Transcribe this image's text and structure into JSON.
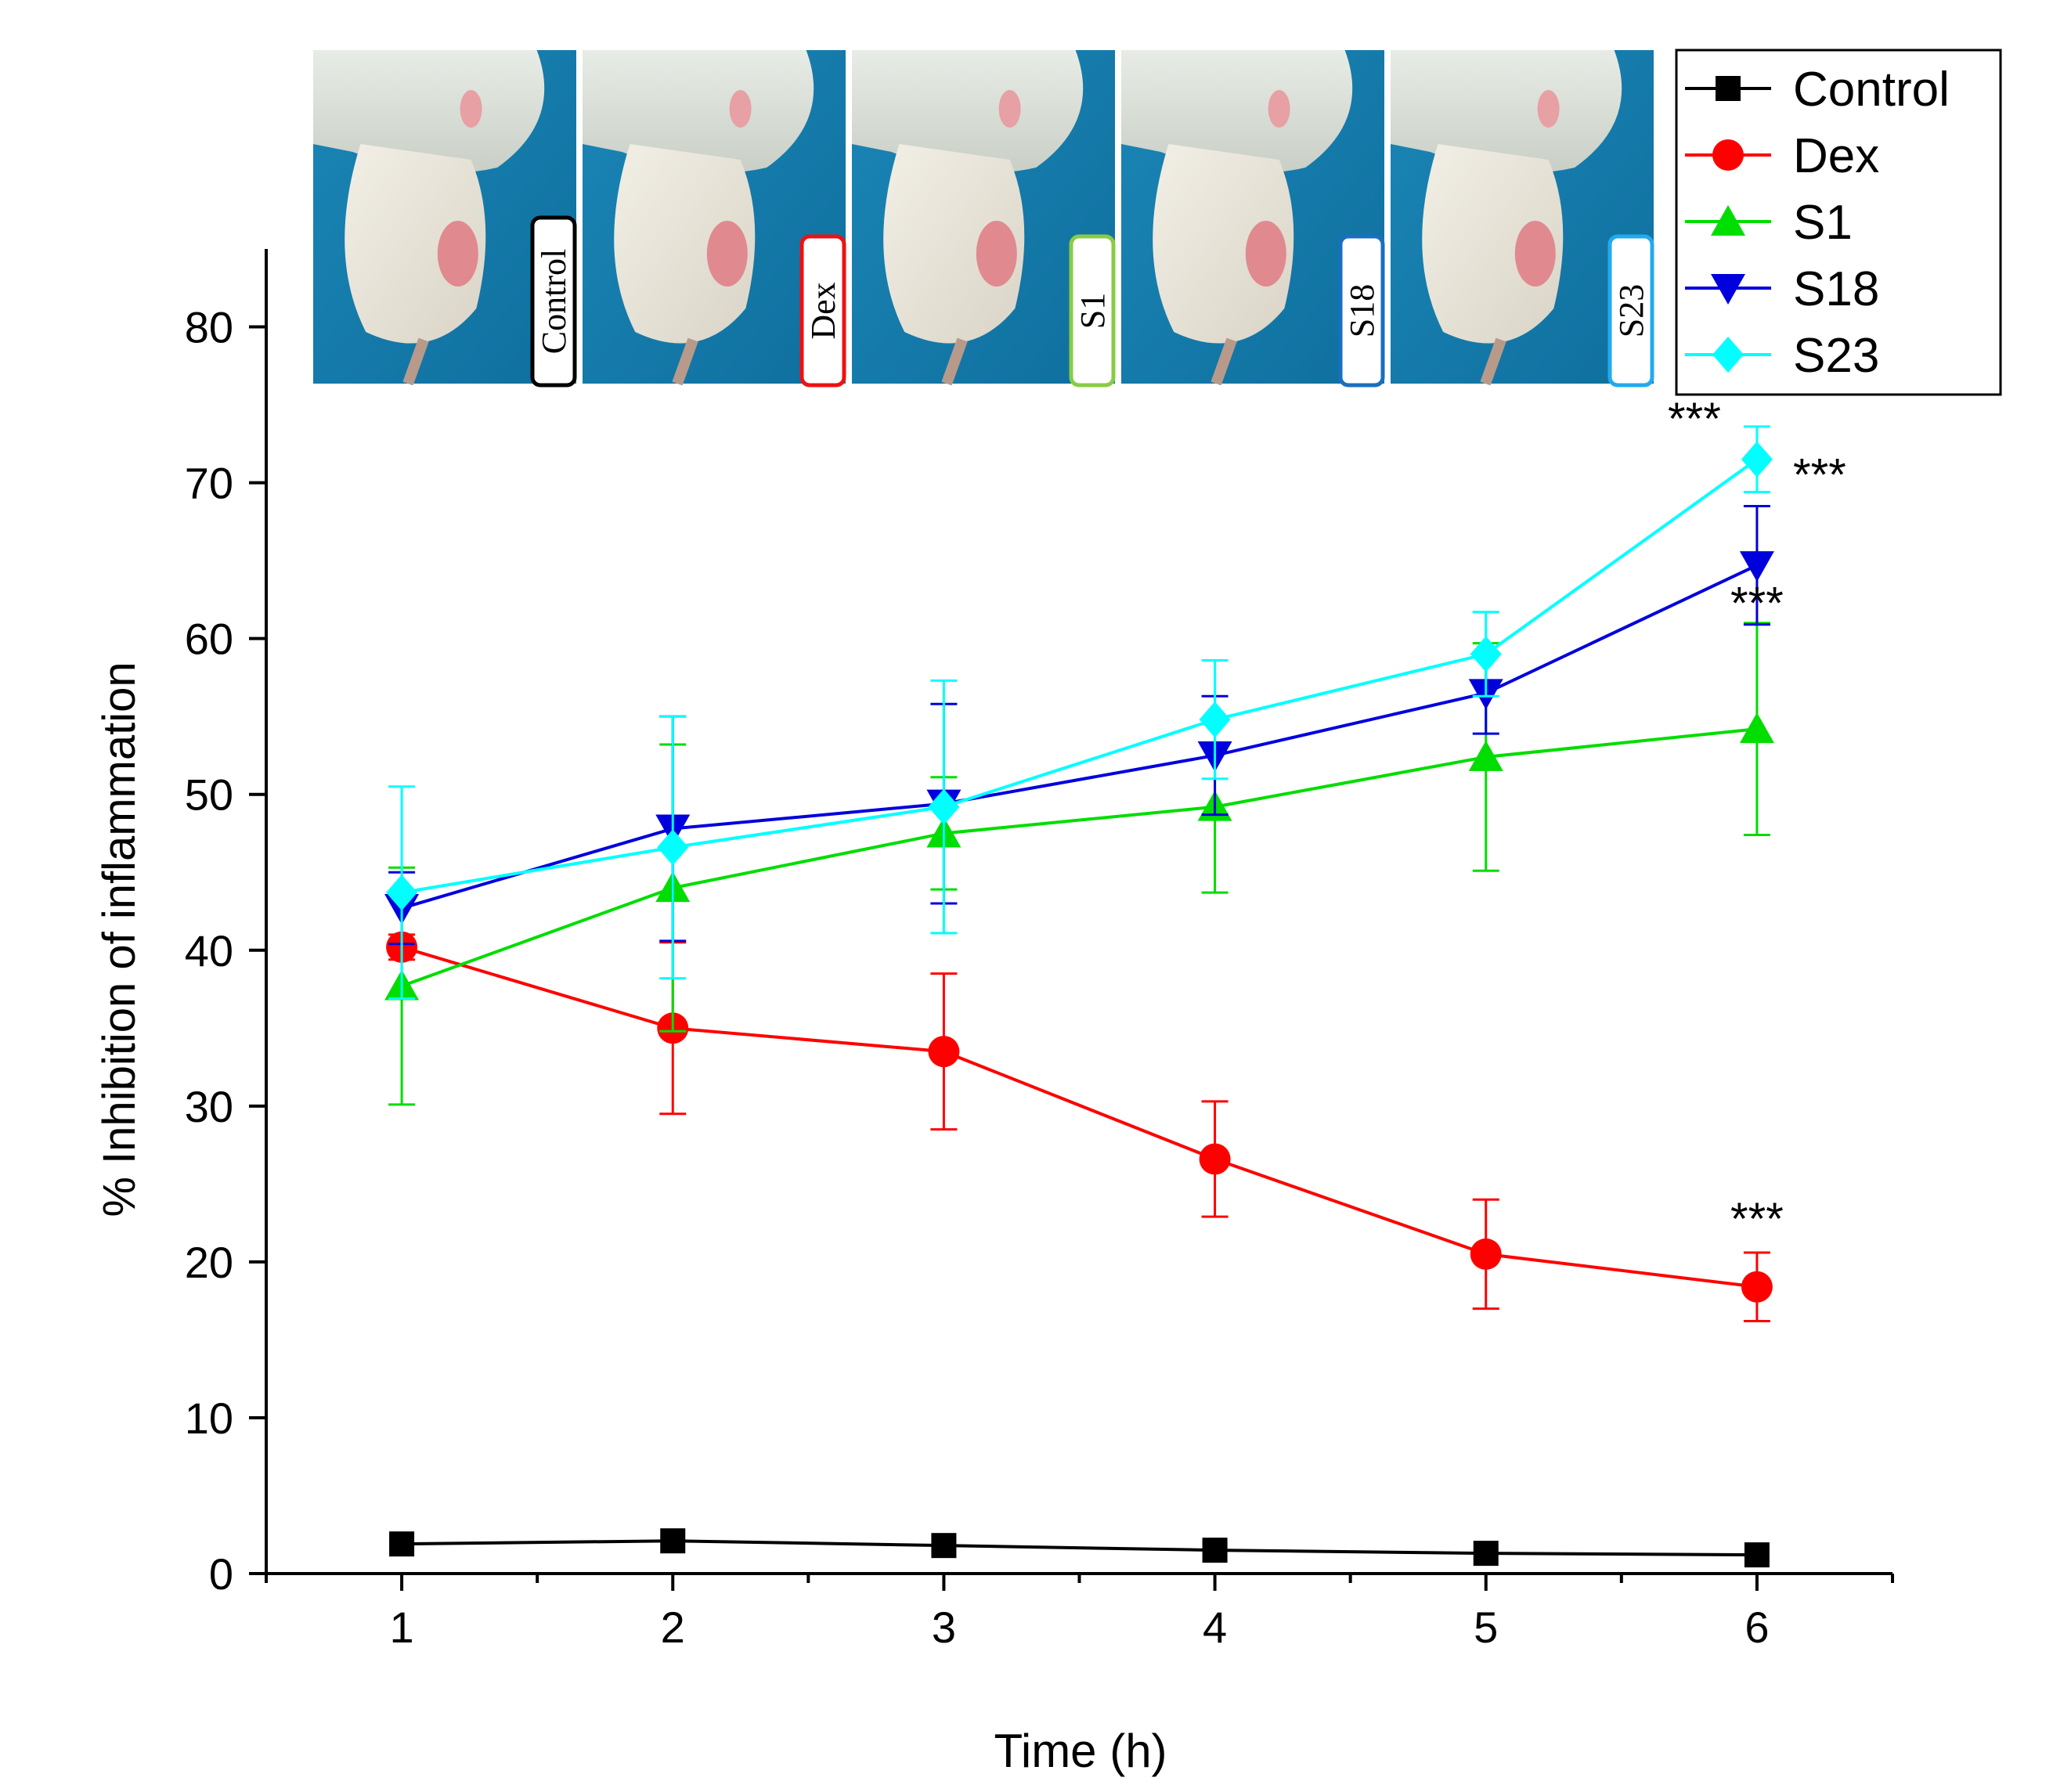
{
  "chart_data": {
    "type": "line",
    "title": "",
    "xlabel": "Time (h)",
    "ylabel": "% Inhibition of inflammation",
    "xlim": [
      0.5,
      6.5
    ],
    "ylim": [
      0,
      85
    ],
    "x_ticks": [
      1,
      2,
      3,
      4,
      5,
      6
    ],
    "y_ticks": [
      0,
      10,
      20,
      30,
      40,
      50,
      60,
      70,
      80
    ],
    "grid": false,
    "legend_position": "top-right",
    "x": [
      1,
      2,
      3,
      4,
      5,
      6
    ],
    "series": [
      {
        "name": "Control",
        "color": "#000000",
        "marker": "square",
        "values": [
          1.9,
          2.1,
          1.8,
          1.5,
          1.3,
          1.2
        ],
        "errors": [
          0,
          0,
          0,
          0,
          0,
          0
        ]
      },
      {
        "name": "Dex",
        "color": "#ff0000",
        "marker": "circle",
        "values": [
          40.2,
          35.0,
          33.5,
          26.6,
          20.5,
          18.4
        ],
        "errors": [
          0.8,
          5.5,
          5.0,
          3.7,
          3.5,
          2.2
        ]
      },
      {
        "name": "S1",
        "color": "#00dd00",
        "marker": "triangle-up",
        "values": [
          37.7,
          44.0,
          47.5,
          49.2,
          52.4,
          54.2
        ],
        "errors": [
          7.6,
          9.2,
          3.6,
          5.5,
          7.3,
          6.8
        ]
      },
      {
        "name": "S18",
        "color": "#0000dd",
        "marker": "triangle-down",
        "values": [
          42.7,
          47.8,
          49.4,
          52.5,
          56.5,
          64.7
        ],
        "errors": [
          2.3,
          7.2,
          6.4,
          3.8,
          2.6,
          3.8
        ]
      },
      {
        "name": "S23",
        "color": "#00ffff",
        "marker": "diamond",
        "values": [
          43.7,
          46.6,
          49.2,
          54.8,
          59.0,
          71.5
        ],
        "errors": [
          6.8,
          8.4,
          8.1,
          3.8,
          2.7,
          2.1
        ]
      }
    ],
    "annotations": [
      {
        "text": "***",
        "series": "S23",
        "x": 6
      },
      {
        "text": "***",
        "series": "S18",
        "x": 6
      },
      {
        "text": "***",
        "series": "S1",
        "x": 6
      },
      {
        "text": "***",
        "series": "Dex",
        "x": 6
      }
    ]
  },
  "photo_panels": [
    {
      "label": "Control",
      "border_color": "#000000"
    },
    {
      "label": "Dex",
      "border_color": "#ee1111"
    },
    {
      "label": "S1",
      "border_color": "#88cc44"
    },
    {
      "label": "S18",
      "border_color": "#1a6fc0"
    },
    {
      "label": "S23",
      "border_color": "#22aaee"
    }
  ]
}
